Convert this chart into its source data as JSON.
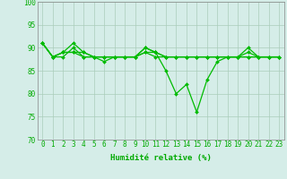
{
  "x": [
    0,
    1,
    2,
    3,
    4,
    5,
    6,
    7,
    8,
    9,
    10,
    11,
    12,
    13,
    14,
    15,
    16,
    17,
    18,
    19,
    20,
    21,
    22,
    23
  ],
  "series": [
    [
      91,
      88,
      88,
      90,
      88,
      88,
      87,
      88,
      88,
      88,
      90,
      89,
      85,
      80,
      82,
      76,
      83,
      87,
      88,
      88,
      90,
      88,
      88,
      88
    ],
    [
      91,
      88,
      89,
      91,
      89,
      88,
      88,
      88,
      88,
      88,
      90,
      89,
      88,
      88,
      88,
      88,
      88,
      88,
      88,
      88,
      89,
      88,
      88,
      88
    ],
    [
      91,
      88,
      89,
      89,
      89,
      88,
      88,
      88,
      88,
      88,
      89,
      89,
      88,
      88,
      88,
      88,
      88,
      88,
      88,
      88,
      88,
      88,
      88,
      88
    ],
    [
      91,
      88,
      89,
      89,
      88,
      88,
      88,
      88,
      88,
      88,
      89,
      88,
      88,
      88,
      88,
      88,
      88,
      88,
      88,
      88,
      88,
      88,
      88,
      88
    ]
  ],
  "line_color": "#00bb00",
  "marker_color": "#00bb00",
  "bg_color": "#d5ede8",
  "grid_color": "#aaccbb",
  "xlabel": "Humidité relative (%)",
  "xlabel_color": "#00aa00",
  "ylim": [
    70,
    100
  ],
  "yticks": [
    70,
    75,
    80,
    85,
    90,
    95,
    100
  ],
  "xticks": [
    0,
    1,
    2,
    3,
    4,
    5,
    6,
    7,
    8,
    9,
    10,
    11,
    12,
    13,
    14,
    15,
    16,
    17,
    18,
    19,
    20,
    21,
    22,
    23
  ],
  "tick_color": "#00aa00",
  "axis_label_fontsize": 6.5,
  "tick_fontsize": 5.5,
  "figsize": [
    3.2,
    2.0
  ],
  "dpi": 100
}
